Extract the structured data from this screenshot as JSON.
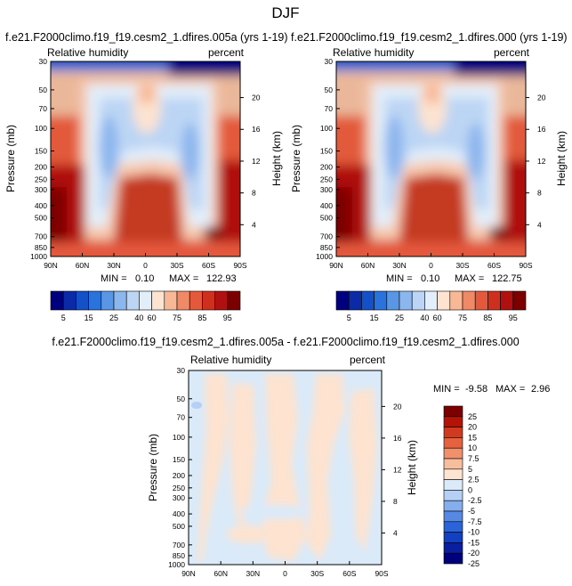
{
  "figure_title": "DJF",
  "colors": {
    "abs_scale": [
      "#00007f",
      "#0a2aa8",
      "#1450c8",
      "#2a72dc",
      "#5a96e6",
      "#8cb6ee",
      "#bcd5f4",
      "#e2eefa",
      "#fde3d0",
      "#f8b896",
      "#f08a66",
      "#e4583c",
      "#cf301e",
      "#b01010",
      "#7d0000"
    ],
    "diff_scale": [
      "#00007f",
      "#0a1fa0",
      "#1240c0",
      "#2a64d8",
      "#5688e4",
      "#86aeee",
      "#b6d0f5",
      "#daeaf9",
      "#fde3d0",
      "#f8bd9c",
      "#f1906c",
      "#e6623e",
      "#d13a1e",
      "#b41408",
      "#7d0000"
    ]
  },
  "chart_data": [
    {
      "type": "heatmap",
      "name": "panel-left",
      "title": "f.e21.F2000climo.f19_f19.cesm2_1.dfires.005a (yrs 1-19)",
      "left_label": "Relative humidity",
      "right_label": "percent",
      "ylabel": "Pressure (mb)",
      "y2label": "Height (km)",
      "x_ticks": [
        "90N",
        "60N",
        "30N",
        "0",
        "30S",
        "60S",
        "90S"
      ],
      "x_values": [
        90,
        60,
        30,
        0,
        -30,
        -60,
        -90
      ],
      "y_ticks": [
        "30",
        "50",
        "70",
        "100",
        "150",
        "200",
        "250",
        "300",
        "400",
        "500",
        "700",
        "850",
        "1000"
      ],
      "y_values": [
        30,
        50,
        70,
        100,
        150,
        200,
        250,
        300,
        400,
        500,
        700,
        850,
        1000
      ],
      "y2_ticks": [
        "20",
        "16",
        "12",
        "8",
        "4"
      ],
      "y2_values": [
        20,
        16,
        12,
        8,
        4
      ],
      "ylim": [
        30,
        1000
      ],
      "stats": {
        "min_label": "MIN =",
        "min": "0.10",
        "max_label": "MAX =",
        "max": "122.93"
      },
      "colorbar_labels": [
        "5",
        "15",
        "25",
        "40",
        "60",
        "75",
        "85",
        "95"
      ]
    },
    {
      "type": "heatmap",
      "name": "panel-right",
      "title": "f.e21.F2000climo.f19_f19.cesm2_1.dfires.000 (yrs 1-19)",
      "left_label": "Relative humidity",
      "right_label": "percent",
      "ylabel": "Pressure (mb)",
      "y2label": "Height (km)",
      "x_ticks": [
        "90N",
        "60N",
        "30N",
        "0",
        "30S",
        "60S",
        "90S"
      ],
      "x_values": [
        90,
        60,
        30,
        0,
        -30,
        -60,
        -90
      ],
      "y_ticks": [
        "30",
        "50",
        "70",
        "100",
        "150",
        "200",
        "250",
        "300",
        "400",
        "500",
        "700",
        "850",
        "1000"
      ],
      "y_values": [
        30,
        50,
        70,
        100,
        150,
        200,
        250,
        300,
        400,
        500,
        700,
        850,
        1000
      ],
      "y2_ticks": [
        "20",
        "16",
        "12",
        "8",
        "4"
      ],
      "y2_values": [
        20,
        16,
        12,
        8,
        4
      ],
      "ylim": [
        30,
        1000
      ],
      "stats": {
        "min_label": "MIN =",
        "min": "0.10",
        "max_label": "MAX =",
        "max": "122.75"
      },
      "colorbar_labels": [
        "5",
        "15",
        "25",
        "40",
        "60",
        "75",
        "85",
        "95"
      ]
    },
    {
      "type": "heatmap",
      "name": "panel-diff",
      "title": "f.e21.F2000climo.f19_f19.cesm2_1.dfires.005a - f.e21.F2000climo.f19_f19.cesm2_1.dfires.000",
      "left_label": "Relative humidity",
      "right_label": "percent",
      "ylabel": "Pressure (mb)",
      "y2label": "Height (km)",
      "x_ticks": [
        "90N",
        "60N",
        "30N",
        "0",
        "30S",
        "60S",
        "90S"
      ],
      "x_values": [
        90,
        60,
        30,
        0,
        -30,
        -60,
        -90
      ],
      "y_ticks": [
        "30",
        "50",
        "70",
        "100",
        "150",
        "200",
        "250",
        "300",
        "400",
        "500",
        "700",
        "850",
        "1000"
      ],
      "y_values": [
        30,
        50,
        70,
        100,
        150,
        200,
        250,
        300,
        400,
        500,
        700,
        850,
        1000
      ],
      "y2_ticks": [
        "20",
        "16",
        "12",
        "8",
        "4"
      ],
      "y2_values": [
        20,
        16,
        12,
        8,
        4
      ],
      "ylim": [
        30,
        1000
      ],
      "stats": {
        "min_label": "MIN =",
        "min": "-9.58",
        "max_label": "MAX =",
        "max": "2.96"
      },
      "colorbar_labels": [
        "25",
        "20",
        "15",
        "10",
        "7.5",
        "5",
        "2.5",
        "0",
        "-2.5",
        "-5",
        "-7.5",
        "-10",
        "-15",
        "-20",
        "-25"
      ]
    }
  ]
}
